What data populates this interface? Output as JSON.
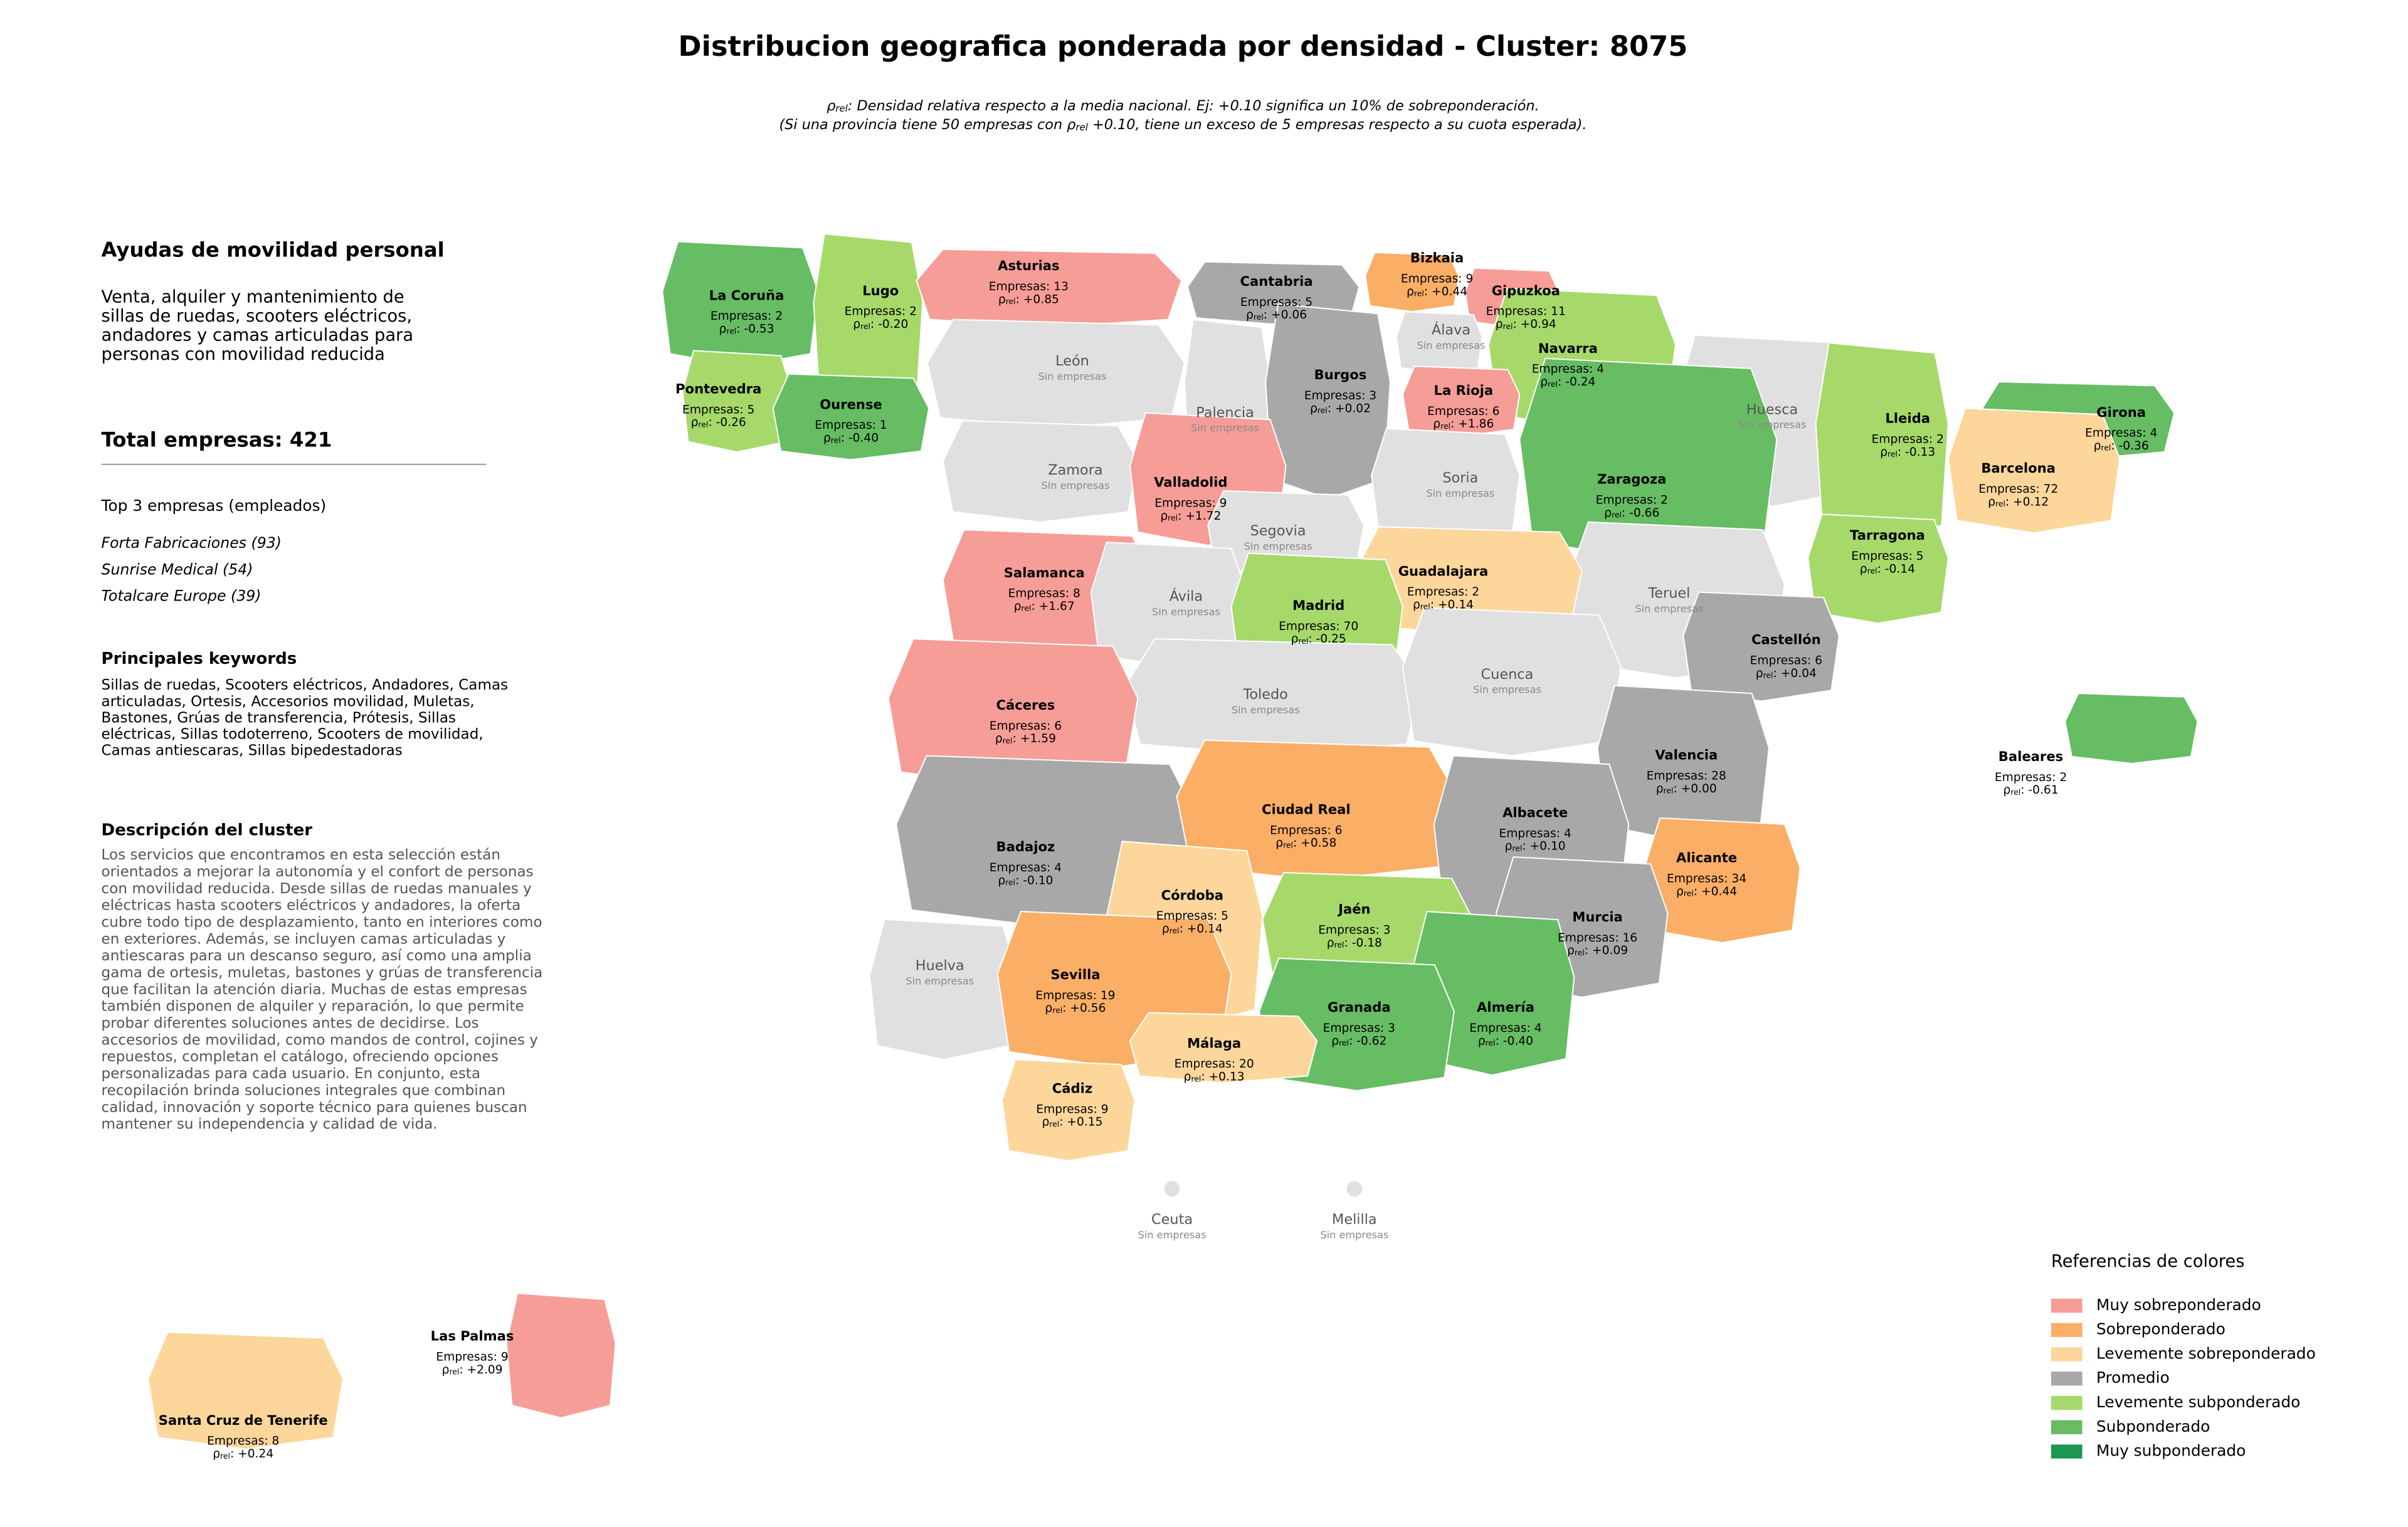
{
  "title": "Distribucion geografica ponderada por densidad - Cluster: 8075",
  "rho_symbol": "ρ",
  "rho_sub": "rel",
  "subtitle": {
    "line1_after": ": Densidad relativa respecto a la media nacional. Ej: +0.10 significa un 10% de sobreponderación.",
    "line2_before": "(Si una provincia tiene 50 empresas con ",
    "line2_after": " +0.10, tiene un exceso de 5 empresas respecto a su cuota esperada)."
  },
  "panel": {
    "heading": "Ayudas de movilidad personal",
    "summary_lines": [
      "Venta, alquiler y mantenimiento de",
      "sillas de ruedas, scooters eléctricos,",
      "andadores y camas articuladas para",
      "personas con movilidad reducida"
    ],
    "total": "Total empresas: 421",
    "top_heading": "Top 3 empresas (empleados)",
    "top": [
      "Forta Fabricaciones (93)",
      "Sunrise Medical (54)",
      "Totalcare Europe (39)"
    ],
    "keywords_heading": "Principales keywords",
    "keywords_lines": [
      "Sillas de ruedas, Scooters eléctricos, Andadores, Camas",
      "articuladas, Ortesis, Accesorios movilidad, Muletas,",
      "Bastones, Grúas de transferencia, Prótesis, Sillas",
      "eléctricas, Sillas todoterreno, Scooters de movilidad,",
      "Camas antiescaras, Sillas bipedestadoras"
    ],
    "description_heading": "Descripción del cluster",
    "description_lines": [
      "Los servicios que encontramos en esta selección están",
      "orientados a mejorar la autonomía y el confort de personas",
      "con movilidad reducida. Desde sillas de ruedas manuales y",
      "eléctricas hasta scooters eléctricos y andadores, la oferta",
      "cubre todo tipo de desplazamiento, tanto en interiores como",
      "en exteriores. Además, se incluyen camas articuladas y",
      "antiescaras para un descanso seguro, así como una amplia",
      "gama de ortesis, muletas, bastones y grúas de transferencia",
      "que facilitan la atención diaria. Muchas de estas empresas",
      "también disponen de alquiler y reparación, lo que permite",
      "probar diferentes soluciones antes de decidirse. Los",
      "accesorios de movilidad, como mandos de control, cojines y",
      "repuestos, completan el catálogo, ofreciendo opciones",
      "personalizadas para cada usuario. En conjunto, esta",
      "recopilación brinda soluciones integrales que combinan",
      "calidad, innovación y soporte técnico para quienes buscan",
      "mantener su independencia y calidad de vida."
    ]
  },
  "no_data_color": "#e0e0e0",
  "legend": {
    "title": "Referencias de colores",
    "items": [
      {
        "name": "Muy sobreponderado",
        "color": "#f69d97"
      },
      {
        "name": "Sobreponderado",
        "color": "#fbae66"
      },
      {
        "name": "Levemente sobreponderado",
        "color": "#fdd69b"
      },
      {
        "name": "Promedio",
        "color": "#a8a8a8"
      },
      {
        "name": "Levemente subponderado",
        "color": "#a6d96a"
      },
      {
        "name": "Subponderado",
        "color": "#66bd63"
      },
      {
        "name": "Muy subponderado",
        "color": "#1a9850"
      }
    ]
  },
  "provinces": [
    {
      "name": "La Coruña",
      "count": "Empresas: 2",
      "rho": "-0.53",
      "category": 5
    },
    {
      "name": "Lugo",
      "count": "Empresas: 2",
      "rho": "-0.20",
      "category": 4
    },
    {
      "name": "Asturias",
      "count": "Empresas: 13",
      "rho": "+0.85",
      "category": 0
    },
    {
      "name": "Cantabria",
      "count": "Empresas: 5",
      "rho": "+0.06",
      "category": 3
    },
    {
      "name": "Bizkaia",
      "count": "Empresas: 9",
      "rho": "+0.44",
      "category": 1
    },
    {
      "name": "Gipuzkoa",
      "count": "Empresas: 11",
      "rho": "+0.94",
      "category": 0
    },
    {
      "name": "Pontevedra",
      "count": "Empresas: 5",
      "rho": "-0.26",
      "category": 4
    },
    {
      "name": "Ourense",
      "count": "Empresas: 1",
      "rho": "-0.40",
      "category": 5
    },
    {
      "name": "León",
      "status": "Sin empresas"
    },
    {
      "name": "Palencia",
      "status": "Sin empresas"
    },
    {
      "name": "Burgos",
      "count": "Empresas: 3",
      "rho": "+0.02",
      "category": 3
    },
    {
      "name": "Álava",
      "status": "Sin empresas"
    },
    {
      "name": "Navarra",
      "count": "Empresas: 4",
      "rho": "-0.24",
      "category": 4
    },
    {
      "name": "La Rioja",
      "count": "Empresas: 6",
      "rho": "+1.86",
      "category": 0
    },
    {
      "name": "Huesca",
      "status": "Sin empresas"
    },
    {
      "name": "Zaragoza",
      "count": "Empresas: 2",
      "rho": "-0.66",
      "category": 5
    },
    {
      "name": "Lleida",
      "count": "Empresas: 2",
      "rho": "-0.13",
      "category": 4
    },
    {
      "name": "Girona",
      "count": "Empresas: 4",
      "rho": "-0.36",
      "category": 5
    },
    {
      "name": "Barcelona",
      "count": "Empresas: 72",
      "rho": "+0.12",
      "category": 2
    },
    {
      "name": "Zamora",
      "status": "Sin empresas"
    },
    {
      "name": "Valladolid",
      "count": "Empresas: 9",
      "rho": "+1.72",
      "category": 0
    },
    {
      "name": "Soria",
      "status": "Sin empresas"
    },
    {
      "name": "Tarragona",
      "count": "Empresas: 5",
      "rho": "-0.14",
      "category": 4
    },
    {
      "name": "Segovia",
      "status": "Sin empresas"
    },
    {
      "name": "Salamanca",
      "count": "Empresas: 8",
      "rho": "+1.67",
      "category": 0
    },
    {
      "name": "Ávila",
      "status": "Sin empresas"
    },
    {
      "name": "Teruel",
      "status": "Sin empresas"
    },
    {
      "name": "Guadalajara",
      "count": "Empresas: 2",
      "rho": "+0.14",
      "category": 2
    },
    {
      "name": "Madrid",
      "count": "Empresas: 70",
      "rho": "-0.25",
      "category": 4
    },
    {
      "name": "Castellón",
      "count": "Empresas: 6",
      "rho": "+0.04",
      "category": 3
    },
    {
      "name": "Toledo",
      "status": "Sin empresas"
    },
    {
      "name": "Cuenca",
      "status": "Sin empresas"
    },
    {
      "name": "Cáceres",
      "count": "Empresas: 6",
      "rho": "+1.59",
      "category": 0
    },
    {
      "name": "Valencia",
      "count": "Empresas: 28",
      "rho": "+0.00",
      "category": 3
    },
    {
      "name": "Badajoz",
      "count": "Empresas: 4",
      "rho": "-0.10",
      "category": 3
    },
    {
      "name": "Ciudad Real",
      "count": "Empresas: 6",
      "rho": "+0.58",
      "category": 1
    },
    {
      "name": "Albacete",
      "count": "Empresas: 4",
      "rho": "+0.10",
      "category": 3
    },
    {
      "name": "Alicante",
      "count": "Empresas: 34",
      "rho": "+0.44",
      "category": 1
    },
    {
      "name": "Córdoba",
      "count": "Empresas: 5",
      "rho": "+0.14",
      "category": 2
    },
    {
      "name": "Murcia",
      "count": "Empresas: 16",
      "rho": "+0.09",
      "category": 3
    },
    {
      "name": "Huelva",
      "status": "Sin empresas"
    },
    {
      "name": "Jaén",
      "count": "Empresas: 3",
      "rho": "-0.18",
      "category": 4
    },
    {
      "name": "Sevilla",
      "count": "Empresas: 19",
      "rho": "+0.56",
      "category": 1
    },
    {
      "name": "Almería",
      "count": "Empresas: 4",
      "rho": "-0.40",
      "category": 5
    },
    {
      "name": "Granada",
      "count": "Empresas: 3",
      "rho": "-0.62",
      "category": 5
    },
    {
      "name": "Málaga",
      "count": "Empresas: 20",
      "rho": "+0.13",
      "category": 2
    },
    {
      "name": "Cádiz",
      "count": "Empresas: 9",
      "rho": "+0.15",
      "category": 2
    },
    {
      "name": "Baleares",
      "count": "Empresas: 2",
      "rho": "-0.61",
      "category": 5
    },
    {
      "name": "Las Palmas",
      "count": "Empresas: 9",
      "rho": "+2.09",
      "category": 0
    },
    {
      "name": "Santa Cruz de Tenerife",
      "count": "Empresas: 8",
      "rho": "+0.24",
      "category": 2
    },
    {
      "name": "Ceuta",
      "status": "Sin empresas"
    },
    {
      "name": "Melilla",
      "status": "Sin empresas"
    }
  ]
}
